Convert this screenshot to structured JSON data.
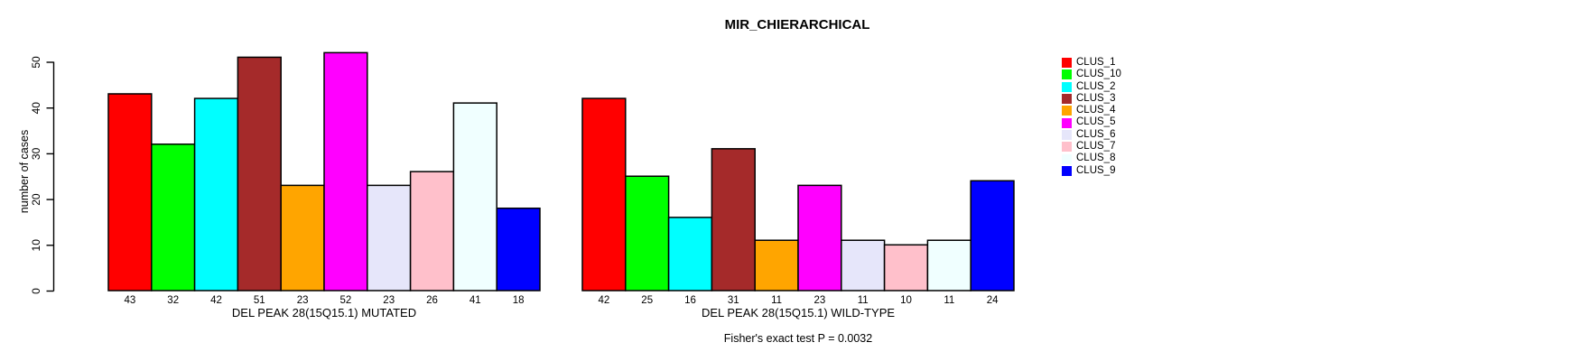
{
  "chart_data": {
    "type": "bar",
    "title": "MIR_CHIERARCHICAL",
    "ylabel": "number of cases",
    "ylim": [
      0,
      52
    ],
    "yticks": [
      0,
      10,
      20,
      30,
      40,
      50
    ],
    "grid": false,
    "legend_position": "right-of-plot",
    "clusters": [
      {
        "name": "CLUS_1",
        "color": "#FF0000"
      },
      {
        "name": "CLUS_10",
        "color": "#00FF00"
      },
      {
        "name": "CLUS_2",
        "color": "#00FFFF"
      },
      {
        "name": "CLUS_3",
        "color": "#A52A2A"
      },
      {
        "name": "CLUS_4",
        "color": "#FFA500"
      },
      {
        "name": "CLUS_5",
        "color": "#FF00FF"
      },
      {
        "name": "CLUS_6",
        "color": "#E6E6FA"
      },
      {
        "name": "CLUS_7",
        "color": "#FFC0CB"
      },
      {
        "name": "CLUS_8",
        "color": "#F0FFFF"
      },
      {
        "name": "CLUS_9",
        "color": "#0000FF"
      }
    ],
    "groups": [
      {
        "label": "DEL PEAK 28(15Q15.1) MUTATED",
        "values": [
          43,
          32,
          42,
          51,
          23,
          52,
          23,
          26,
          41,
          18
        ]
      },
      {
        "label": "DEL PEAK 28(15Q15.1) WILD-TYPE",
        "values": [
          42,
          25,
          16,
          31,
          11,
          23,
          11,
          10,
          11,
          24
        ]
      }
    ],
    "annotation": "Fisher's exact test P = 0.0032",
    "bar_border_color": "#000000",
    "text_color": "#000000",
    "background_color": "#FFFFFF"
  }
}
